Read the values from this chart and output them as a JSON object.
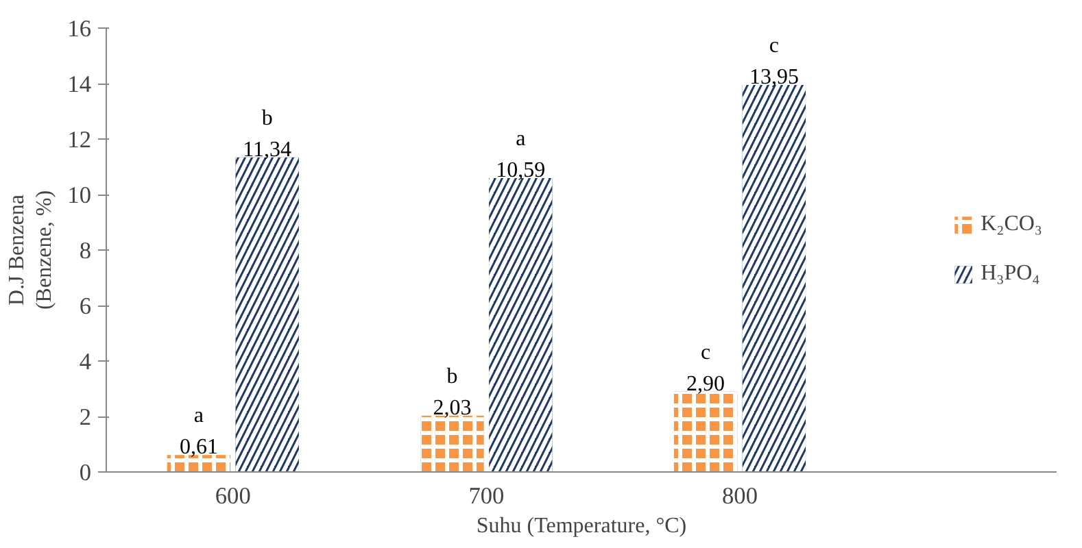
{
  "chart_data": {
    "type": "bar",
    "xlabel": "Suhu (Temperature, °C)",
    "ylabel": "D.J Benzena\n(Benzene, %)",
    "categories": [
      "600",
      "700",
      "800"
    ],
    "series": [
      {
        "name": "K₂CO₃",
        "color": "#f79646",
        "values": [
          0.61,
          2.03,
          2.9
        ],
        "value_labels": [
          "0,61",
          "2,03",
          "2,90"
        ]
      },
      {
        "name": "H₃PO₄",
        "color": "#1f3864",
        "values": [
          11.34,
          10.59,
          13.95
        ],
        "value_labels": [
          "11,34",
          "10,59",
          "13,95"
        ]
      }
    ],
    "annotations": [
      {
        "text": "a",
        "x": "600",
        "y": 0.61
      },
      {
        "text": "b",
        "x": "700",
        "y": 2.03
      },
      {
        "text": "c",
        "x": "800",
        "y": 2.9
      },
      {
        "text": "b",
        "x": "600",
        "y": 11.34
      },
      {
        "text": "a",
        "x": "700",
        "y": 10.59
      },
      {
        "text": "c",
        "x": "800",
        "y": 13.95
      }
    ],
    "ylim": [
      0,
      16
    ],
    "yticks": [
      0,
      2,
      4,
      6,
      8,
      10,
      12,
      14,
      16
    ],
    "grid": false,
    "legend": "right"
  }
}
